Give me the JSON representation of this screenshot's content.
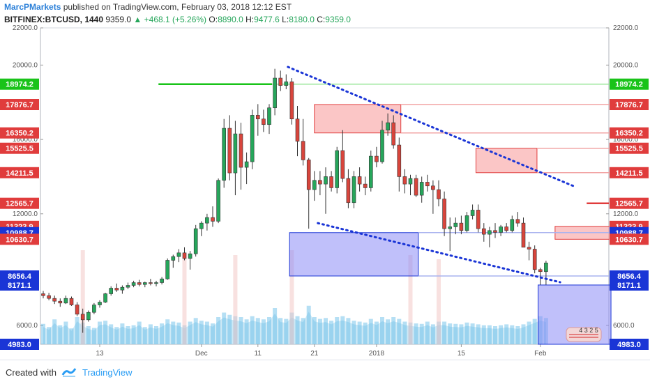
{
  "header": {
    "author": "MarcPMarkets",
    "published": "published on TradingView.com, February 03, 2018 12:12 EST",
    "symbol": "BITFINEX:BTCUSD, 1440",
    "last": "9359.0",
    "change": "+468.1 (+5.26%)",
    "o_label": "O:",
    "o": "8890.0",
    "h_label": "H:",
    "h": "9477.6",
    "l_label": "L:",
    "l": "8180.0",
    "c_label": "C:",
    "c": "9359.0"
  },
  "footer": {
    "created_with": "Created with",
    "brand": "TradingView"
  },
  "colors": {
    "up": "#26a65b",
    "down": "#d8453c",
    "resistance": "#e03c3c",
    "support": "#1a35d6",
    "green_level": "#19c319",
    "volume": "#b9dff2"
  },
  "chart_data": {
    "type": "candlestick",
    "y_axis": {
      "min": 4983,
      "max": 22000,
      "ticks": [
        "22000.0",
        "20000.0",
        "16000.0",
        "12000.0",
        "6000.0"
      ]
    },
    "x_axis": {
      "ticks": [
        "13",
        "Dec",
        "11",
        "21",
        "2018",
        "15",
        "Feb"
      ]
    },
    "candles": [
      {
        "o": 7700,
        "h": 7850,
        "l": 7450,
        "c": 7600
      },
      {
        "o": 7600,
        "h": 7750,
        "l": 7350,
        "c": 7450
      },
      {
        "o": 7450,
        "h": 7600,
        "l": 7150,
        "c": 7300
      },
      {
        "o": 7300,
        "h": 7450,
        "l": 7000,
        "c": 7200
      },
      {
        "o": 7200,
        "h": 7600,
        "l": 7150,
        "c": 7450
      },
      {
        "o": 7450,
        "h": 7550,
        "l": 7050,
        "c": 7100
      },
      {
        "o": 7100,
        "h": 7250,
        "l": 6500,
        "c": 6600
      },
      {
        "o": 6600,
        "h": 6900,
        "l": 5600,
        "c": 6300
      },
      {
        "o": 6300,
        "h": 6800,
        "l": 6200,
        "c": 6700
      },
      {
        "o": 6700,
        "h": 7200,
        "l": 6600,
        "c": 7100
      },
      {
        "o": 7100,
        "h": 7350,
        "l": 6950,
        "c": 7250
      },
      {
        "o": 7250,
        "h": 7750,
        "l": 7200,
        "c": 7700
      },
      {
        "o": 7700,
        "h": 8100,
        "l": 7600,
        "c": 8000
      },
      {
        "o": 8000,
        "h": 8250,
        "l": 7800,
        "c": 7900
      },
      {
        "o": 7900,
        "h": 8150,
        "l": 7700,
        "c": 8050
      },
      {
        "o": 8050,
        "h": 8300,
        "l": 7950,
        "c": 8150
      },
      {
        "o": 8150,
        "h": 8400,
        "l": 8050,
        "c": 8300
      },
      {
        "o": 8300,
        "h": 8450,
        "l": 8100,
        "c": 8200
      },
      {
        "o": 8200,
        "h": 8350,
        "l": 8050,
        "c": 8300
      },
      {
        "o": 8300,
        "h": 8500,
        "l": 8150,
        "c": 8250
      },
      {
        "o": 8250,
        "h": 8400,
        "l": 8100,
        "c": 8300
      },
      {
        "o": 8300,
        "h": 8600,
        "l": 8200,
        "c": 8500
      },
      {
        "o": 8500,
        "h": 9600,
        "l": 8450,
        "c": 9500
      },
      {
        "o": 9500,
        "h": 9800,
        "l": 9100,
        "c": 9700
      },
      {
        "o": 9700,
        "h": 10100,
        "l": 9400,
        "c": 9900
      },
      {
        "o": 9900,
        "h": 10200,
        "l": 9500,
        "c": 9600
      },
      {
        "o": 9600,
        "h": 10000,
        "l": 9000,
        "c": 9850
      },
      {
        "o": 9850,
        "h": 11400,
        "l": 9700,
        "c": 11200
      },
      {
        "o": 11200,
        "h": 11600,
        "l": 10800,
        "c": 11500
      },
      {
        "o": 11500,
        "h": 12000,
        "l": 11100,
        "c": 11800
      },
      {
        "o": 11800,
        "h": 12400,
        "l": 11300,
        "c": 11600
      },
      {
        "o": 11600,
        "h": 13900,
        "l": 11500,
        "c": 13800
      },
      {
        "o": 13800,
        "h": 17100,
        "l": 13400,
        "c": 16600
      },
      {
        "o": 16600,
        "h": 17300,
        "l": 13800,
        "c": 14200
      },
      {
        "o": 14200,
        "h": 17000,
        "l": 13000,
        "c": 16300
      },
      {
        "o": 16300,
        "h": 16900,
        "l": 13300,
        "c": 14500
      },
      {
        "o": 14500,
        "h": 15300,
        "l": 13600,
        "c": 14800
      },
      {
        "o": 14800,
        "h": 17600,
        "l": 14400,
        "c": 17300
      },
      {
        "o": 17300,
        "h": 17900,
        "l": 16200,
        "c": 17100
      },
      {
        "o": 17100,
        "h": 17600,
        "l": 16400,
        "c": 16800
      },
      {
        "o": 16800,
        "h": 17900,
        "l": 16300,
        "c": 17700
      },
      {
        "o": 17700,
        "h": 19800,
        "l": 17300,
        "c": 19300
      },
      {
        "o": 19300,
        "h": 19700,
        "l": 18600,
        "c": 18900
      },
      {
        "o": 18900,
        "h": 19500,
        "l": 18700,
        "c": 19100
      },
      {
        "o": 19100,
        "h": 19300,
        "l": 16800,
        "c": 17100
      },
      {
        "o": 17100,
        "h": 17800,
        "l": 15100,
        "c": 15900
      },
      {
        "o": 15900,
        "h": 17100,
        "l": 14600,
        "c": 14900
      },
      {
        "o": 14900,
        "h": 15000,
        "l": 11200,
        "c": 13300
      },
      {
        "o": 13300,
        "h": 14300,
        "l": 12700,
        "c": 13800
      },
      {
        "o": 13800,
        "h": 14300,
        "l": 13000,
        "c": 13600
      },
      {
        "o": 13600,
        "h": 14500,
        "l": 12000,
        "c": 14000
      },
      {
        "o": 14000,
        "h": 14300,
        "l": 13200,
        "c": 13400
      },
      {
        "o": 13400,
        "h": 15600,
        "l": 13100,
        "c": 15400
      },
      {
        "o": 15400,
        "h": 16500,
        "l": 13700,
        "c": 13900
      },
      {
        "o": 13900,
        "h": 14400,
        "l": 12300,
        "c": 12600
      },
      {
        "o": 12600,
        "h": 14300,
        "l": 12300,
        "c": 14000
      },
      {
        "o": 14000,
        "h": 14500,
        "l": 13200,
        "c": 13600
      },
      {
        "o": 13600,
        "h": 14000,
        "l": 13000,
        "c": 13400
      },
      {
        "o": 13400,
        "h": 15400,
        "l": 13200,
        "c": 15100
      },
      {
        "o": 15100,
        "h": 15600,
        "l": 14500,
        "c": 14800
      },
      {
        "o": 14800,
        "h": 17000,
        "l": 14700,
        "c": 16500
      },
      {
        "o": 16500,
        "h": 17400,
        "l": 16200,
        "c": 16900
      },
      {
        "o": 16900,
        "h": 17300,
        "l": 15500,
        "c": 15700
      },
      {
        "o": 15700,
        "h": 16100,
        "l": 13200,
        "c": 14000
      },
      {
        "o": 14000,
        "h": 14400,
        "l": 13100,
        "c": 13600
      },
      {
        "o": 13600,
        "h": 14100,
        "l": 13000,
        "c": 13900
      },
      {
        "o": 13900,
        "h": 14100,
        "l": 12900,
        "c": 13000
      },
      {
        "o": 13000,
        "h": 14000,
        "l": 12600,
        "c": 13700
      },
      {
        "o": 13700,
        "h": 14100,
        "l": 13200,
        "c": 13500
      },
      {
        "o": 13500,
        "h": 13800,
        "l": 12000,
        "c": 13300
      },
      {
        "o": 13300,
        "h": 13800,
        "l": 12400,
        "c": 12800
      },
      {
        "o": 12800,
        "h": 13200,
        "l": 10800,
        "c": 11200
      },
      {
        "o": 11200,
        "h": 11800,
        "l": 10000,
        "c": 11300
      },
      {
        "o": 11300,
        "h": 11800,
        "l": 10900,
        "c": 11500
      },
      {
        "o": 11500,
        "h": 11900,
        "l": 10900,
        "c": 11100
      },
      {
        "o": 11100,
        "h": 12100,
        "l": 11000,
        "c": 11900
      },
      {
        "o": 11900,
        "h": 12500,
        "l": 11700,
        "c": 12200
      },
      {
        "o": 12200,
        "h": 12500,
        "l": 11000,
        "c": 11200
      },
      {
        "o": 11200,
        "h": 11500,
        "l": 10500,
        "c": 10900
      },
      {
        "o": 10900,
        "h": 11300,
        "l": 10200,
        "c": 11100
      },
      {
        "o": 11100,
        "h": 11500,
        "l": 10700,
        "c": 11000
      },
      {
        "o": 11000,
        "h": 11400,
        "l": 10800,
        "c": 11300
      },
      {
        "o": 11300,
        "h": 11500,
        "l": 11000,
        "c": 11100
      },
      {
        "o": 11100,
        "h": 11900,
        "l": 11000,
        "c": 11700
      },
      {
        "o": 11700,
        "h": 12100,
        "l": 11300,
        "c": 11500
      },
      {
        "o": 11500,
        "h": 11800,
        "l": 10200,
        "c": 10200
      },
      {
        "o": 10200,
        "h": 10500,
        "l": 9500,
        "c": 10100
      },
      {
        "o": 10100,
        "h": 10300,
        "l": 8800,
        "c": 9000
      },
      {
        "o": 9000,
        "h": 9100,
        "l": 8180,
        "c": 8890
      },
      {
        "o": 8890,
        "h": 9477.6,
        "l": 8180,
        "c": 9359
      }
    ],
    "volume_bars": [
      0.45,
      0.38,
      0.55,
      0.42,
      0.5,
      0.35,
      0.6,
      0.48,
      0.4,
      0.36,
      0.5,
      0.52,
      0.44,
      0.38,
      0.46,
      0.4,
      0.42,
      0.5,
      0.38,
      0.44,
      0.4,
      0.46,
      0.55,
      0.5,
      0.48,
      0.42,
      0.5,
      0.58,
      0.52,
      0.5,
      0.46,
      0.6,
      0.7,
      0.65,
      0.62,
      0.6,
      0.55,
      0.62,
      0.58,
      0.55,
      0.6,
      0.8,
      0.58,
      0.56,
      0.7,
      0.62,
      0.58,
      0.85,
      0.6,
      0.56,
      0.58,
      0.52,
      0.6,
      0.62,
      0.58,
      0.52,
      0.5,
      0.48,
      0.56,
      0.5,
      0.6,
      0.55,
      0.6,
      0.56,
      0.5,
      0.48,
      0.46,
      0.45,
      0.5,
      0.44,
      0.5,
      0.5,
      0.46,
      0.45,
      0.44,
      0.48,
      0.46,
      0.44,
      0.42,
      0.42,
      0.4,
      0.42,
      0.44,
      0.42,
      0.4,
      0.44,
      0.5,
      0.56,
      0.62,
      0.58
    ],
    "levels": [
      {
        "price": 18974.2,
        "label": "18974.2",
        "color": "#19c319"
      },
      {
        "price": 17876.7,
        "label": "17876.7",
        "color": "#e03c3c"
      },
      {
        "price": 16350.2,
        "label": "16350.2",
        "color": "#e03c3c"
      },
      {
        "price": 15525.5,
        "label": "15525.5",
        "color": "#e03c3c"
      },
      {
        "price": 14211.5,
        "label": "14211.5",
        "color": "#e03c3c"
      },
      {
        "price": 12565.7,
        "label": "12565.7",
        "color": "#e03c3c"
      },
      {
        "price": 11323.9,
        "label": "11323.9",
        "color": "#e03c3c"
      },
      {
        "price": 10988.7,
        "label": "10988.7",
        "color": "#1a35d6"
      },
      {
        "price": 10630.7,
        "label": "10630.7",
        "color": "#e03c3c"
      },
      {
        "price": 8656.4,
        "label": "8656.4",
        "color": "#1a35d6"
      },
      {
        "price": 8171.1,
        "label": "8171.1",
        "color": "#1a35d6"
      },
      {
        "price": 4983,
        "label": "4983.0",
        "color": "#1a35d6"
      }
    ],
    "badge": "4 3 2 5"
  }
}
